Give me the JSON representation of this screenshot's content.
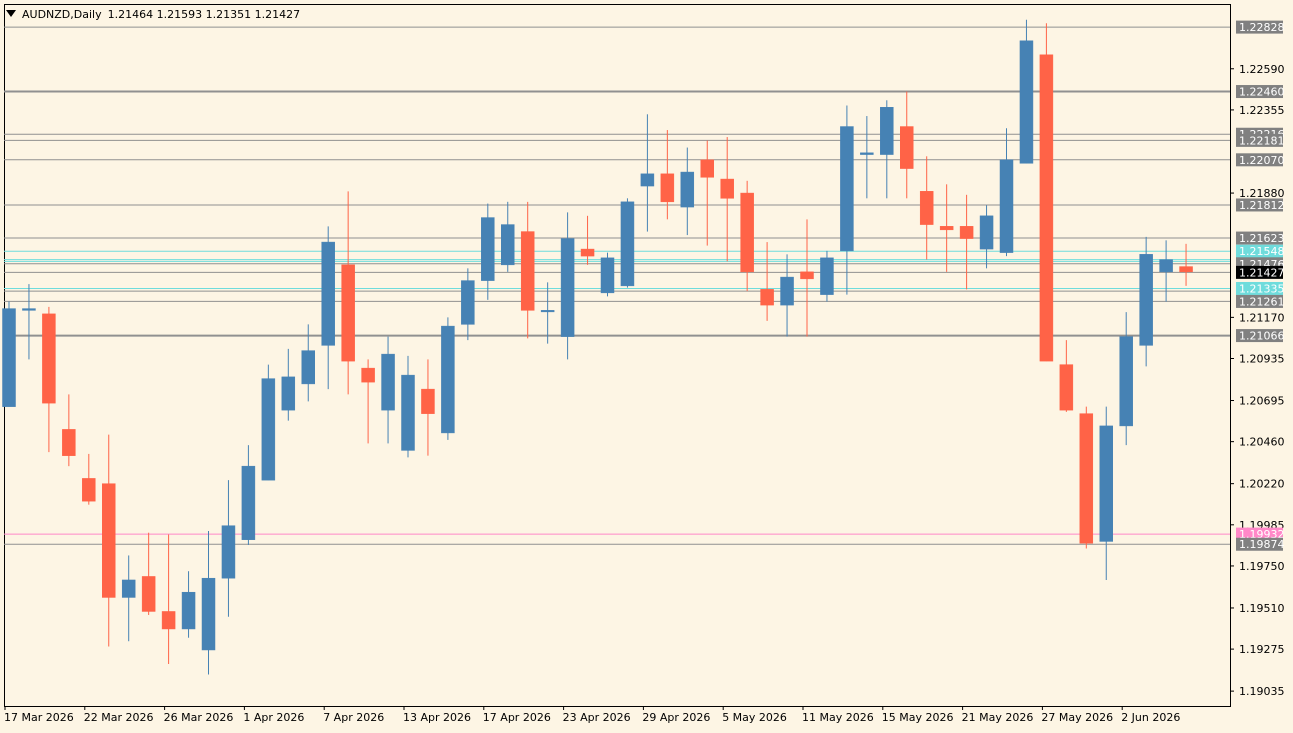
{
  "header": {
    "symbol": "AUDNZD,Daily",
    "ohlc": "1.21464 1.21593 1.21351 1.21427"
  },
  "colors": {
    "background": "#fdf5e4",
    "bull": "#4682b4",
    "bear": "#ff6347",
    "level_gray": "#909090",
    "level_cyan": "#6fdcdc",
    "level_pink": "#ff88c8",
    "price_tag": "#000000"
  },
  "chart_data": {
    "type": "candlestick",
    "symbol": "AUDNZD",
    "timeframe": "Daily",
    "ylim": [
      1.1895,
      1.2296
    ],
    "y_ticks": [
      "1.22590",
      "1.22355",
      "1.21880",
      "1.21170",
      "1.20935",
      "1.20695",
      "1.20460",
      "1.20220",
      "1.19985",
      "1.19750",
      "1.19510",
      "1.19275",
      "1.19035"
    ],
    "x_ticks": [
      {
        "label": "17 Mar 2026",
        "index": 0
      },
      {
        "label": "22 Mar 2026",
        "index": 4
      },
      {
        "label": "26 Mar 2026",
        "index": 8
      },
      {
        "label": "1 Apr 2026",
        "index": 12
      },
      {
        "label": "7 Apr 2026",
        "index": 16
      },
      {
        "label": "13 Apr 2026",
        "index": 20
      },
      {
        "label": "17 Apr 2026",
        "index": 24
      },
      {
        "label": "23 Apr 2026",
        "index": 28
      },
      {
        "label": "29 Apr 2026",
        "index": 32
      },
      {
        "label": "5 May 2026",
        "index": 36
      },
      {
        "label": "11 May 2026",
        "index": 40
      },
      {
        "label": "15 May 2026",
        "index": 44
      },
      {
        "label": "21 May 2026",
        "index": 48
      },
      {
        "label": "27 May 2026",
        "index": 52
      },
      {
        "label": "2 Jun 2026",
        "index": 56
      }
    ],
    "candles": [
      {
        "o": 1.2066,
        "h": 1.2126,
        "l": 1.2066,
        "c": 1.2122
      },
      {
        "o": 1.2121,
        "h": 1.2136,
        "l": 1.2093,
        "c": 1.2122
      },
      {
        "o": 1.2119,
        "h": 1.2123,
        "l": 1.204,
        "c": 1.2068
      },
      {
        "o": 1.2053,
        "h": 1.2073,
        "l": 1.2032,
        "c": 1.2038
      },
      {
        "o": 1.2025,
        "h": 1.2039,
        "l": 1.201,
        "c": 1.2012
      },
      {
        "o": 1.2022,
        "h": 1.205,
        "l": 1.1929,
        "c": 1.1957
      },
      {
        "o": 1.1957,
        "h": 1.1981,
        "l": 1.1932,
        "c": 1.1967
      },
      {
        "o": 1.1969,
        "h": 1.1994,
        "l": 1.1947,
        "c": 1.1949
      },
      {
        "o": 1.1949,
        "h": 1.1993,
        "l": 1.1919,
        "c": 1.1939
      },
      {
        "o": 1.1939,
        "h": 1.1972,
        "l": 1.1934,
        "c": 1.196
      },
      {
        "o": 1.1927,
        "h": 1.1995,
        "l": 1.1913,
        "c": 1.1968
      },
      {
        "o": 1.1968,
        "h": 1.2024,
        "l": 1.1946,
        "c": 1.1998
      },
      {
        "o": 1.199,
        "h": 1.2044,
        "l": 1.1987,
        "c": 1.2032
      },
      {
        "o": 1.2024,
        "h": 1.209,
        "l": 1.2024,
        "c": 1.2082
      },
      {
        "o": 1.2064,
        "h": 1.2099,
        "l": 1.2058,
        "c": 1.2083
      },
      {
        "o": 1.2079,
        "h": 1.2113,
        "l": 1.2069,
        "c": 1.2098
      },
      {
        "o": 1.2101,
        "h": 1.2169,
        "l": 1.2076,
        "c": 1.216
      },
      {
        "o": 1.2147,
        "h": 1.2189,
        "l": 1.2073,
        "c": 1.2092
      },
      {
        "o": 1.2088,
        "h": 1.2093,
        "l": 1.2045,
        "c": 1.208
      },
      {
        "o": 1.2064,
        "h": 1.2106,
        "l": 1.2045,
        "c": 1.2096
      },
      {
        "o": 1.2041,
        "h": 1.2095,
        "l": 1.2037,
        "c": 1.2084
      },
      {
        "o": 1.2076,
        "h": 1.2093,
        "l": 1.2038,
        "c": 1.2062
      },
      {
        "o": 1.2051,
        "h": 1.2117,
        "l": 1.2047,
        "c": 1.2112
      },
      {
        "o": 1.2113,
        "h": 1.2145,
        "l": 1.2104,
        "c": 1.2138
      },
      {
        "o": 1.2138,
        "h": 1.2182,
        "l": 1.2127,
        "c": 1.2174
      },
      {
        "o": 1.2147,
        "h": 1.2183,
        "l": 1.2143,
        "c": 1.217
      },
      {
        "o": 1.2166,
        "h": 1.2183,
        "l": 1.2105,
        "c": 1.2121
      },
      {
        "o": 1.2121,
        "h": 1.2137,
        "l": 1.2102,
        "c": 1.2121
      },
      {
        "o": 1.2106,
        "h": 1.2177,
        "l": 1.2093,
        "c": 1.2162
      },
      {
        "o": 1.2156,
        "h": 1.2175,
        "l": 1.2147,
        "c": 1.2152
      },
      {
        "o": 1.2131,
        "h": 1.2154,
        "l": 1.2129,
        "c": 1.2151
      },
      {
        "o": 1.2135,
        "h": 1.2185,
        "l": 1.2134,
        "c": 1.2183
      },
      {
        "o": 1.2192,
        "h": 1.2233,
        "l": 1.2166,
        "c": 1.2199
      },
      {
        "o": 1.2199,
        "h": 1.2224,
        "l": 1.2173,
        "c": 1.2183
      },
      {
        "o": 1.218,
        "h": 1.2214,
        "l": 1.2164,
        "c": 1.22
      },
      {
        "o": 1.2207,
        "h": 1.2218,
        "l": 1.2158,
        "c": 1.2197
      },
      {
        "o": 1.2196,
        "h": 1.222,
        "l": 1.2149,
        "c": 1.2185
      },
      {
        "o": 1.2188,
        "h": 1.2195,
        "l": 1.2132,
        "c": 1.2143
      },
      {
        "o": 1.2133,
        "h": 1.216,
        "l": 1.2115,
        "c": 1.2124
      },
      {
        "o": 1.2124,
        "h": 1.2153,
        "l": 1.2106,
        "c": 1.214
      },
      {
        "o": 1.2143,
        "h": 1.2173,
        "l": 1.2106,
        "c": 1.2139
      },
      {
        "o": 1.213,
        "h": 1.2155,
        "l": 1.2126,
        "c": 1.2151
      },
      {
        "o": 1.2155,
        "h": 1.2238,
        "l": 1.213,
        "c": 1.2226
      },
      {
        "o": 1.221,
        "h": 1.2232,
        "l": 1.2185,
        "c": 1.2211
      },
      {
        "o": 1.221,
        "h": 1.2241,
        "l": 1.2185,
        "c": 1.2237
      },
      {
        "o": 1.2226,
        "h": 1.2246,
        "l": 1.2185,
        "c": 1.2202
      },
      {
        "o": 1.2189,
        "h": 1.2209,
        "l": 1.215,
        "c": 1.217
      },
      {
        "o": 1.2169,
        "h": 1.2193,
        "l": 1.2143,
        "c": 1.2167
      },
      {
        "o": 1.2169,
        "h": 1.2187,
        "l": 1.2133,
        "c": 1.2162
      },
      {
        "o": 1.2156,
        "h": 1.2181,
        "l": 1.2145,
        "c": 1.2175
      },
      {
        "o": 1.2154,
        "h": 1.2225,
        "l": 1.2152,
        "c": 1.2207
      },
      {
        "o": 1.2205,
        "h": 1.2287,
        "l": 1.2205,
        "c": 1.2275
      },
      {
        "o": 1.2267,
        "h": 1.2285,
        "l": 1.2092,
        "c": 1.2092
      },
      {
        "o": 1.209,
        "h": 1.2104,
        "l": 1.2063,
        "c": 1.2064
      },
      {
        "o": 1.2062,
        "h": 1.2066,
        "l": 1.1985,
        "c": 1.1988
      },
      {
        "o": 1.1989,
        "h": 1.2066,
        "l": 1.1967,
        "c": 1.2055
      },
      {
        "o": 1.2055,
        "h": 1.212,
        "l": 1.2044,
        "c": 1.2106
      },
      {
        "o": 1.2101,
        "h": 1.2163,
        "l": 1.2089,
        "c": 1.2153
      },
      {
        "o": 1.2143,
        "h": 1.2161,
        "l": 1.2126,
        "c": 1.215
      },
      {
        "o": 1.2146,
        "h": 1.2159,
        "l": 1.2135,
        "c": 1.2143
      }
    ],
    "levels": [
      {
        "value": 1.22828,
        "label": "1.22828",
        "color": "gray"
      },
      {
        "value": 1.2246,
        "label": "1.22460",
        "color": "gray"
      },
      {
        "value": 1.22216,
        "label": "1.22216",
        "color": "gray"
      },
      {
        "value": 1.22181,
        "label": "1.22181",
        "color": "gray"
      },
      {
        "value": 1.2207,
        "label": "1.22070",
        "color": "gray"
      },
      {
        "value": 1.21812,
        "label": "1.21812",
        "color": "gray"
      },
      {
        "value": 1.21623,
        "label": "1.21623",
        "color": "gray"
      },
      {
        "value": 1.21548,
        "label": "1.21548",
        "color": "cyan"
      },
      {
        "value": 1.21476,
        "label": "1.21476",
        "color": "gray"
      },
      {
        "value": 1.21427,
        "label": "1.21427",
        "color": "current"
      },
      {
        "value": 1.21335,
        "label": "1.21335",
        "color": "cyan"
      },
      {
        "value": 1.21261,
        "label": "1.21261",
        "color": "gray"
      },
      {
        "value": 1.21066,
        "label": "1.21066",
        "color": "gray"
      },
      {
        "value": 1.19932,
        "label": "1.19932",
        "color": "pink"
      },
      {
        "value": 1.19874,
        "label": "1.19874",
        "color": "gray"
      }
    ],
    "extra_lines": [
      {
        "value": 1.2132,
        "color": "gray"
      },
      {
        "value": 1.215,
        "color": "cyan"
      },
      {
        "value": 1.2149,
        "color": "cyan"
      }
    ]
  }
}
